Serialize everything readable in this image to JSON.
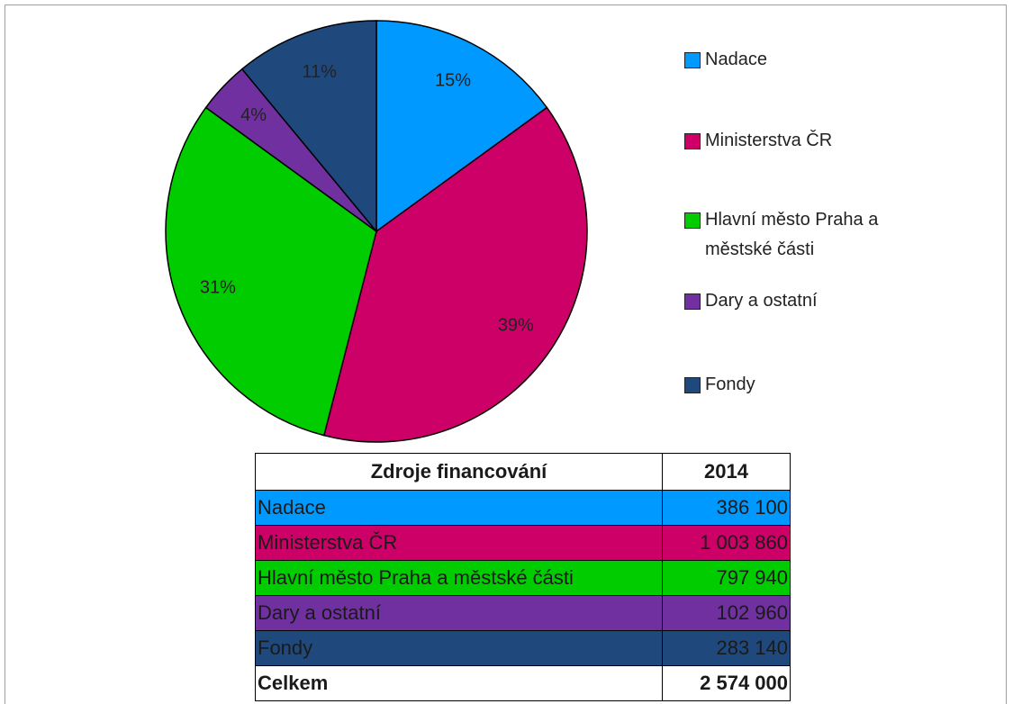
{
  "chart_data": {
    "type": "pie",
    "categories": [
      "Nadace",
      "Ministerstva ČR",
      "Hlavní město Praha a městské části",
      "Dary a ostatní",
      "Fondy"
    ],
    "values": [
      15,
      39,
      31,
      4,
      11
    ],
    "value_labels": [
      "15%",
      "39%",
      "31%",
      "4%",
      "11%"
    ],
    "colors": [
      "#0099ff",
      "#cc0066",
      "#00cc00",
      "#7030a0",
      "#1f497d"
    ],
    "legend": "right"
  },
  "table": {
    "header": [
      "Zdroje financování",
      "2014"
    ],
    "rows": [
      [
        "Nadace",
        "386 100"
      ],
      [
        "Ministerstva ČR",
        "1 003 860"
      ],
      [
        "Hlavní město Praha a městské části",
        "797 940"
      ],
      [
        "Dary a ostatní",
        "102 960"
      ],
      [
        "Fondy",
        "283 140"
      ]
    ],
    "total": [
      "Celkem",
      "2 574 000"
    ]
  }
}
